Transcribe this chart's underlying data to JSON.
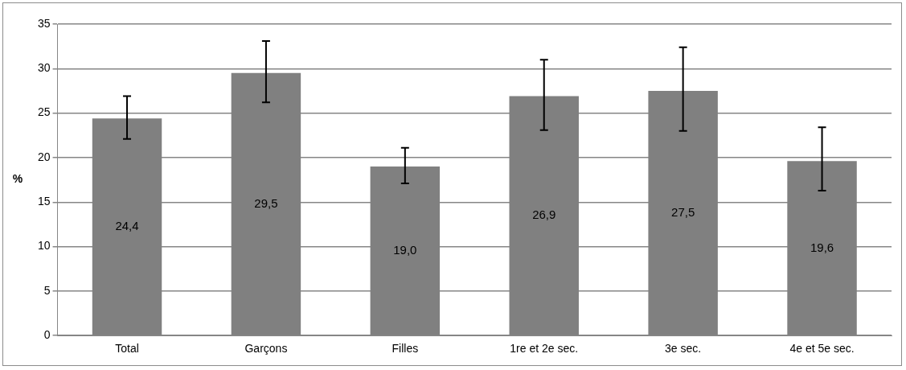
{
  "chart_data": {
    "type": "bar",
    "ylabel": "%",
    "categories": [
      "Total",
      "Garçons",
      "Filles",
      "1re et 2e sec.",
      "3e sec.",
      "4e et 5e sec."
    ],
    "values": [
      24.4,
      29.5,
      19.0,
      26.9,
      27.5,
      19.6
    ],
    "value_labels": [
      "24,4",
      "29,5",
      "19,0",
      "26,9",
      "27,5",
      "19,6"
    ],
    "errors": [
      [
        22.1,
        26.9
      ],
      [
        26.2,
        33.1
      ],
      [
        17.1,
        21.1
      ],
      [
        23.1,
        31.0
      ],
      [
        23.0,
        32.4
      ],
      [
        16.3,
        23.4
      ]
    ],
    "color": "#808080",
    "ylim": [
      0,
      35
    ],
    "yticks": [
      0,
      5,
      10,
      15,
      20,
      25,
      30,
      35
    ],
    "grid": "y",
    "legend": false
  }
}
